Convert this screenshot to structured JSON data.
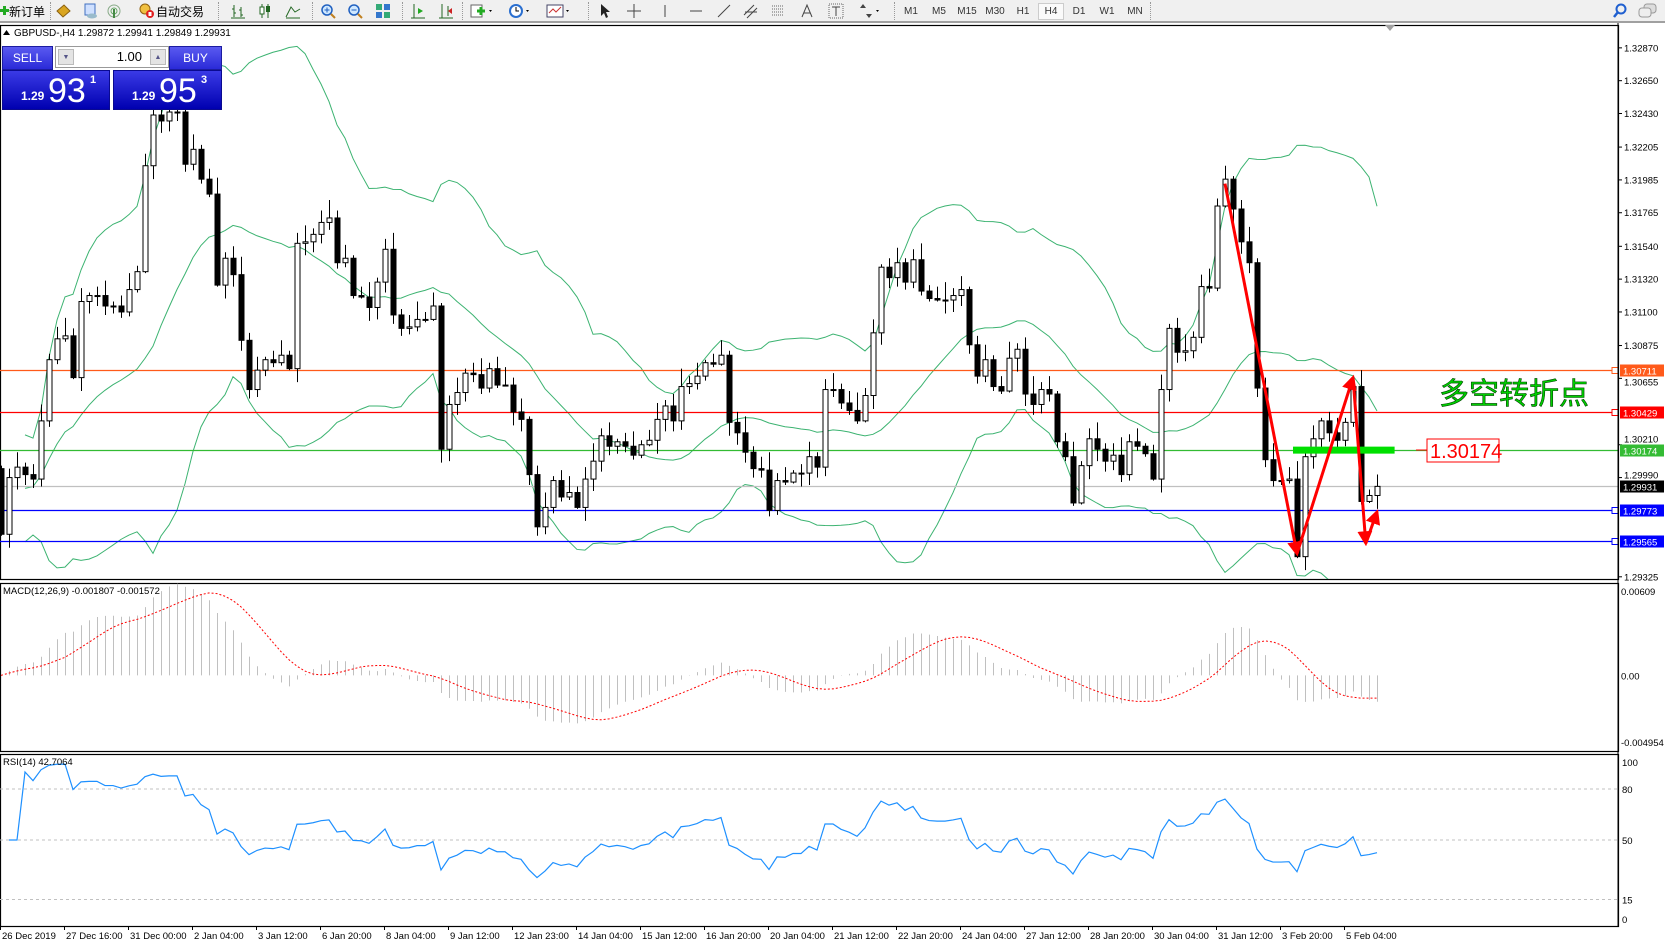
{
  "toolbar": {
    "new_order": "新订单",
    "auto_trading": "自动交易",
    "timeframes": [
      "M1",
      "M5",
      "M15",
      "M30",
      "H1",
      "H4",
      "D1",
      "W1",
      "MN"
    ],
    "active_timeframe": "H4"
  },
  "chart": {
    "header": "GBPUSD-,H4  1.29872 1.29941 1.29849 1.29931",
    "annotation_text": "多空转折点",
    "level_box": "1.30174"
  },
  "one_click": {
    "sell_label": "SELL",
    "buy_label": "BUY",
    "lot": "1.00",
    "sell_price": {
      "prefix": "1.29",
      "big": "93",
      "sup": "1"
    },
    "buy_price": {
      "prefix": "1.29",
      "big": "95",
      "sup": "3"
    }
  },
  "colors": {
    "bands": "#3cb371",
    "macd_hist": "#c0c0c0",
    "macd_signal": "#ff0000",
    "rsi": "#1e90ff",
    "zigzag": "#ff0000",
    "level_bar": "#00e000"
  },
  "price_axis": {
    "ticks": [
      "1.32870",
      "1.32650",
      "1.32430",
      "1.32205",
      "1.31985",
      "1.31765",
      "1.31540",
      "1.31320",
      "1.31100",
      "1.30875",
      "1.30655",
      "1.30210",
      "1.29990",
      "1.29325"
    ]
  },
  "hlines": [
    {
      "price": 1.30711,
      "label": "1.30711",
      "color": "#ff5a1a",
      "marker": true
    },
    {
      "price": 1.30429,
      "label": "1.30429",
      "color": "#ff0000",
      "marker": true
    },
    {
      "price": 1.30174,
      "label": "1.30174",
      "color": "#33bb33",
      "marker": false
    },
    {
      "price": 1.29931,
      "label": "1.29931",
      "color": "#c0c0c0",
      "marker": false,
      "box": "#000000"
    },
    {
      "price": 1.29773,
      "label": "1.29773",
      "color": "#0000ff",
      "marker": true
    },
    {
      "price": 1.29565,
      "label": "1.29565",
      "color": "#0000ff",
      "marker": true
    }
  ],
  "chart_data": {
    "type": "candlestick",
    "symbol": "GBPUSD-",
    "timeframe": "H4",
    "closes": [
      1.2961,
      1.2999,
      1.3006,
      1.3001,
      1.2998,
      1.3037,
      1.3078,
      1.3092,
      1.3094,
      1.3066,
      1.3117,
      1.3121,
      1.3121,
      1.3114,
      1.3114,
      1.311,
      1.3125,
      1.3137,
      1.3208,
      1.3242,
      1.3238,
      1.3244,
      1.3244,
      1.3209,
      1.3219,
      1.3199,
      1.3189,
      1.3128,
      1.3146,
      1.3135,
      1.3091,
      1.3058,
      1.3071,
      1.3078,
      1.3076,
      1.3081,
      1.3072,
      1.3156,
      1.3157,
      1.3162,
      1.317,
      1.3173,
      1.3143,
      1.3146,
      1.3121,
      1.312,
      1.3113,
      1.313,
      1.3152,
      1.3108,
      1.3099,
      1.31,
      1.3105,
      1.3105,
      1.3114,
      1.3018,
      1.3048,
      1.3056,
      1.3069,
      1.3068,
      1.3059,
      1.3072,
      1.3061,
      1.3061,
      1.3043,
      1.3038,
      1.3001,
      1.2966,
      1.2979,
      1.2997,
      1.2986,
      1.2989,
      1.2979,
      1.2998,
      1.301,
      1.3027,
      1.302,
      1.3023,
      1.302,
      1.3014,
      1.3021,
      1.3024,
      1.3038,
      1.3047,
      1.3037,
      1.306,
      1.3062,
      1.3067,
      1.3076,
      1.3075,
      1.3081,
      1.3036,
      1.3029,
      1.3016,
      1.3005,
      1.3004,
      1.2977,
      1.2997,
      1.2996,
      1.3002,
      1.3002,
      1.3013,
      1.3006,
      1.3058,
      1.3058,
      1.3049,
      1.3044,
      1.3037,
      1.3054,
      1.3096,
      1.314,
      1.3133,
      1.3143,
      1.313,
      1.3145,
      1.3124,
      1.3119,
      1.3118,
      1.3118,
      1.3121,
      1.3125,
      1.3088,
      1.3067,
      1.3078,
      1.306,
      1.3057,
      1.3079,
      1.3085,
      1.3055,
      1.3048,
      1.3058,
      1.3055,
      1.3023,
      1.3013,
      1.2982,
      1.3007,
      1.3025,
      1.3018,
      1.301,
      1.3014,
      1.3001,
      1.3023,
      1.302,
      1.3015,
      1.2998,
      1.3058,
      1.3099,
      1.3083,
      1.3084,
      1.3093,
      1.3127,
      1.3126,
      1.3181,
      1.3199,
      1.3179,
      1.3157,
      1.3143,
      1.3059,
      1.3011,
      1.2997,
      1.2997,
      1.2998,
      1.2946,
      1.3013,
      1.3025,
      1.3037,
      1.3029,
      1.3024,
      1.3036,
      1.306,
      1.2983,
      1.2987,
      1.29931
    ],
    "first_open": 1.3005,
    "price_range": [
      1.29325,
      1.3287
    ],
    "zigzag": [
      [
        153,
        1.3196
      ],
      [
        162,
        1.2948
      ],
      [
        169,
        1.3066
      ],
      [
        170.6,
        1.2955
      ],
      [
        172,
        1.2976
      ]
    ],
    "level_bar": {
      "from": 161.5,
      "to": 174.2,
      "price": 1.30174
    },
    "indicators": [
      "Bollinger Bands(20,2)"
    ]
  },
  "macd": {
    "label": "MACD(12,26,9) -0.001807 -0.001572",
    "range": [
      -0.004954,
      0.00609
    ],
    "axis_labels": [
      "0.00609",
      "0.00",
      "-0.004954"
    ]
  },
  "rsi": {
    "label": "RSI(14) 42.7064",
    "levels": [
      80,
      50,
      15
    ],
    "axis_labels": [
      "100",
      "80",
      "50",
      "15",
      "0"
    ]
  },
  "time_axis": [
    "26 Dec 2019",
    "27 Dec 16:00",
    "31 Dec 00:00",
    "2 Jan 04:00",
    "3 Jan 12:00",
    "6 Jan 20:00",
    "8 Jan 04:00",
    "9 Jan 12:00",
    "12 Jan 23:00",
    "14 Jan 04:00",
    "15 Jan 12:00",
    "16 Jan 20:00",
    "20 Jan 04:00",
    "21 Jan 12:00",
    "22 Jan 20:00",
    "24 Jan 04:00",
    "27 Jan 12:00",
    "28 Jan 20:00",
    "30 Jan 04:00",
    "31 Jan 12:00",
    "3 Feb 20:00",
    "5 Feb 04:00"
  ]
}
